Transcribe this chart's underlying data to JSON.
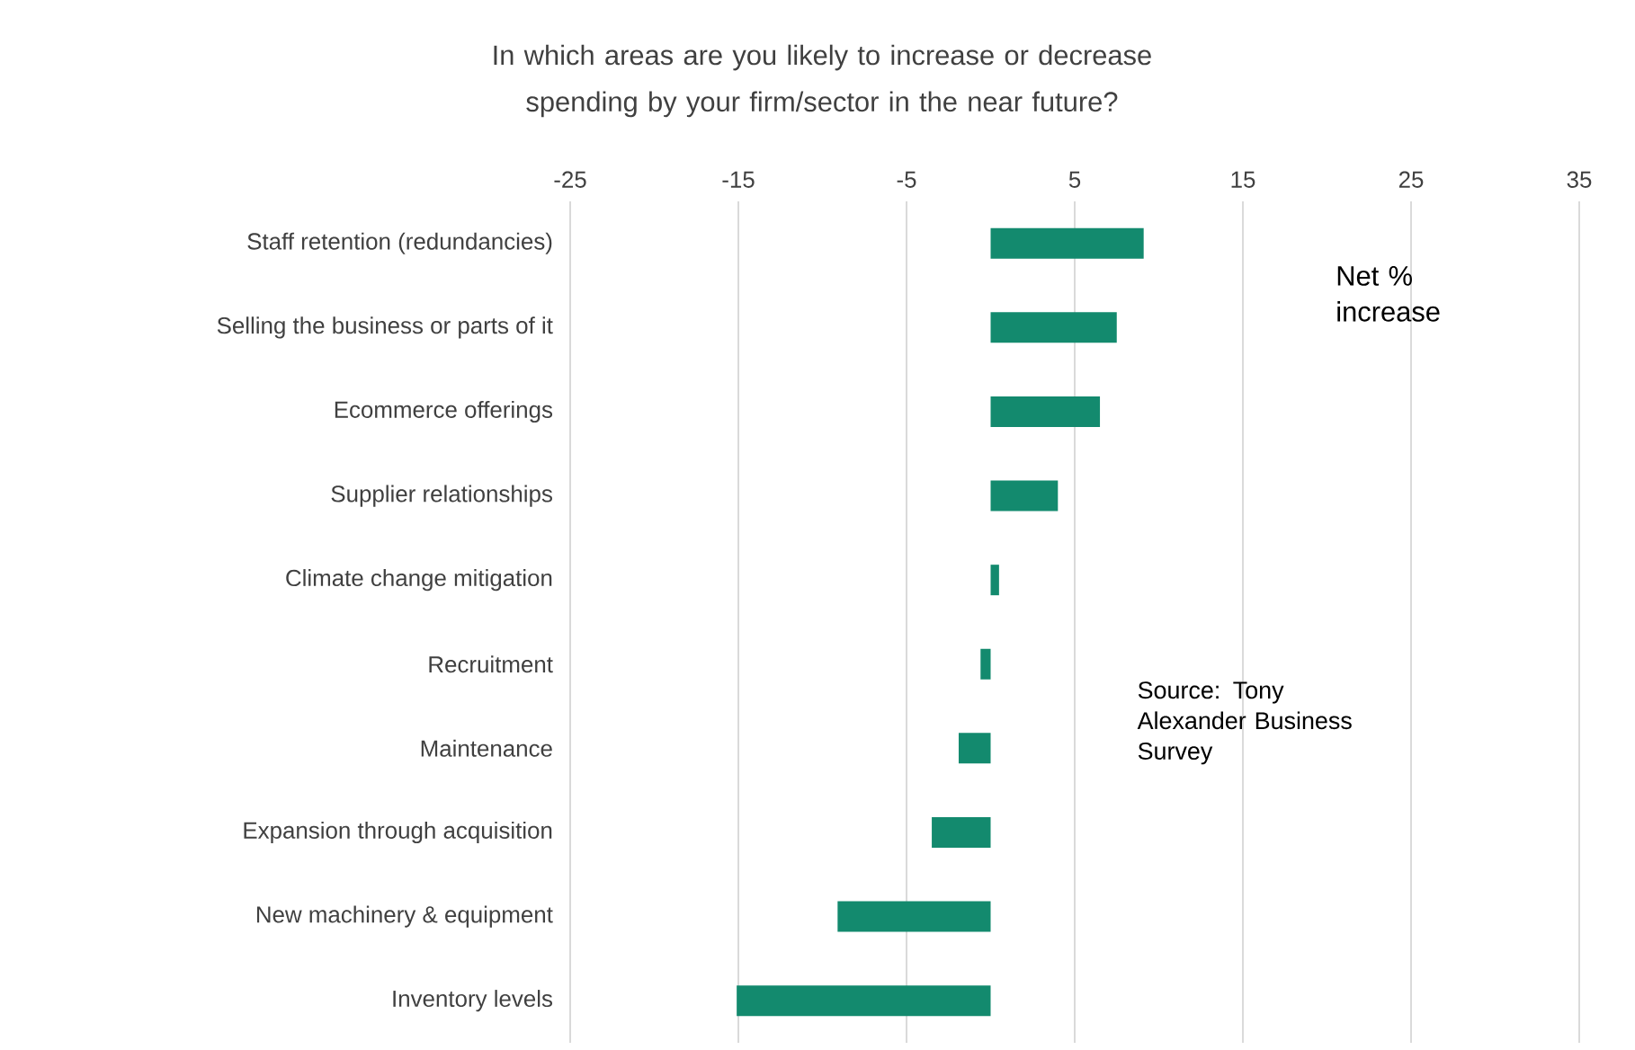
{
  "chart_data": {
    "type": "bar",
    "orientation": "horizontal",
    "title": "In which areas are you likely to increase or decrease spending by your firm/sector in the near future?",
    "categories": [
      "Staff retention (redundancies)",
      "Selling the business or parts of it",
      "Ecommerce offerings",
      "Supplier relationships",
      "Climate change mitigation",
      "Recruitment",
      "Maintenance",
      "Expansion through acquisition",
      "New machinery & equipment",
      "Inventory levels"
    ],
    "values": [
      9.1,
      7.5,
      6.5,
      4.0,
      0.5,
      -0.6,
      -1.9,
      -3.5,
      -9.1,
      -15.1
    ],
    "color": "#138a6e",
    "xlim": [
      -25,
      35
    ],
    "xticks": [
      -25,
      -15,
      -5,
      5,
      15,
      25,
      35
    ],
    "grid": "x",
    "annotations": [
      "Net % increase",
      "Source: Tony Alexander Business Survey"
    ]
  }
}
